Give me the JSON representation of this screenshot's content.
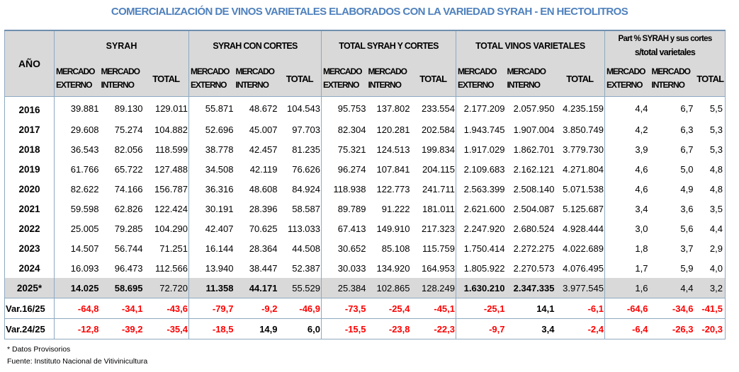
{
  "title": "COMERCIALIZACIÓN DE VINOS VARIETALES ELABORADOS CON LA VARIEDAD SYRAH - EN HECTOLITROS",
  "headers": {
    "year": "AÑO",
    "groups": [
      "SYRAH",
      "SYRAH CON CORTES",
      "TOTAL SYRAH Y CORTES",
      "TOTAL VINOS VARIETALES"
    ],
    "part_line1": "Part % SYRAH y sus cortes",
    "part_line2": "s/total varietales",
    "sub": {
      "externo": [
        "MERCADO",
        "EXTERNO"
      ],
      "interno": [
        "MERCADO",
        "INTERNO"
      ],
      "total": "TOTAL"
    }
  },
  "rows": [
    {
      "year": "2016",
      "v": [
        "39.881",
        "89.130",
        "129.011",
        "55.871",
        "48.672",
        "104.543",
        "95.753",
        "137.802",
        "233.554",
        "2.177.209",
        "2.057.950",
        "4.235.159",
        "4,4",
        "6,7",
        "5,5"
      ]
    },
    {
      "year": "2017",
      "v": [
        "29.608",
        "75.274",
        "104.882",
        "52.696",
        "45.007",
        "97.703",
        "82.304",
        "120.281",
        "202.584",
        "1.943.745",
        "1.907.004",
        "3.850.749",
        "4,2",
        "6,3",
        "5,3"
      ]
    },
    {
      "year": "2018",
      "v": [
        "36.543",
        "82.056",
        "118.599",
        "38.778",
        "42.457",
        "81.235",
        "75.321",
        "124.513",
        "199.834",
        "1.917.029",
        "1.862.701",
        "3.779.730",
        "3,9",
        "6,7",
        "5,3"
      ]
    },
    {
      "year": "2019",
      "v": [
        "61.766",
        "65.722",
        "127.488",
        "34.508",
        "42.119",
        "76.626",
        "96.274",
        "107.841",
        "204.115",
        "2.109.683",
        "2.162.121",
        "4.271.804",
        "4,6",
        "5,0",
        "4,8"
      ]
    },
    {
      "year": "2020",
      "v": [
        "82.622",
        "74.166",
        "156.787",
        "36.316",
        "48.608",
        "84.924",
        "118.938",
        "122.773",
        "241.711",
        "2.563.399",
        "2.508.140",
        "5.071.538",
        "4,6",
        "4,9",
        "4,8"
      ]
    },
    {
      "year": "2021",
      "v": [
        "59.598",
        "62.826",
        "122.424",
        "30.191",
        "28.396",
        "58.587",
        "89.789",
        "91.222",
        "181.011",
        "2.621.600",
        "2.504.087",
        "5.125.687",
        "3,4",
        "3,6",
        "3,5"
      ]
    },
    {
      "year": "2022",
      "v": [
        "25.005",
        "79.285",
        "104.290",
        "42.407",
        "70.625",
        "113.033",
        "67.413",
        "149.910",
        "217.323",
        "2.247.920",
        "2.680.524",
        "4.928.444",
        "3,0",
        "5,6",
        "4,4"
      ]
    },
    {
      "year": "2023",
      "v": [
        "14.507",
        "56.744",
        "71.251",
        "16.144",
        "28.364",
        "44.508",
        "30.652",
        "85.108",
        "115.759",
        "1.750.414",
        "2.272.275",
        "4.022.689",
        "1,8",
        "3,7",
        "2,9"
      ]
    },
    {
      "year": "2024",
      "v": [
        "16.093",
        "96.473",
        "112.566",
        "13.940",
        "38.447",
        "52.387",
        "30.033",
        "134.920",
        "164.953",
        "1.805.922",
        "2.270.573",
        "4.076.495",
        "1,7",
        "5,9",
        "4,0"
      ]
    },
    {
      "year": "2025*",
      "v": [
        "14.025",
        "58.695",
        "72.720",
        "11.358",
        "44.171",
        "55.529",
        "25.384",
        "102.865",
        "128.249",
        "1.630.210",
        "2.347.335",
        "3.977.545",
        "1,6",
        "4,4",
        "3,2"
      ]
    }
  ],
  "variations": [
    {
      "label": "Var.16/25",
      "v": [
        "-64,8",
        "-34,1",
        "-43,6",
        "-79,7",
        "-9,2",
        "-46,9",
        "-73,5",
        "-25,4",
        "-45,1",
        "-25,1",
        "14,1",
        "-6,1",
        "-64,6",
        "-34,6",
        "-41,5"
      ]
    },
    {
      "label": "Var.24/25",
      "v": [
        "-12,8",
        "-39,2",
        "-35,4",
        "-18,5",
        "14,9",
        "6,0",
        "-15,5",
        "-23,8",
        "-22,3",
        "-9,7",
        "3,4",
        "-2,4",
        "-6,4",
        "-26,3",
        "-20,3"
      ]
    }
  ],
  "footnotes": {
    "provisional": "* Datos Provisorios",
    "source": "Fuente:  Instituto Nacional de Vitivinicultura"
  },
  "colors": {
    "title": "#4f81bd",
    "header_bg": "#d9d9d9",
    "negative": "#ff0000",
    "grid": "#8ea9c1"
  }
}
